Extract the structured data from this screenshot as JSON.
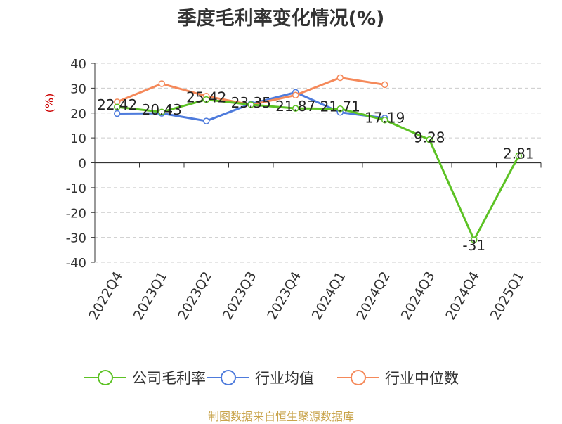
{
  "chart_data": {
    "type": "line",
    "title": "季度毛利率变化情况(%)",
    "ylabel": "(%)",
    "categories": [
      "2022Q4",
      "2023Q1",
      "2023Q2",
      "2023Q3",
      "2023Q4",
      "2024Q1",
      "2024Q2",
      "2024Q3",
      "2024Q4",
      "2025Q1"
    ],
    "ylim": [
      -40,
      40
    ],
    "yticks": [
      40,
      30,
      20,
      10,
      0,
      -10,
      -20,
      -30,
      -40
    ],
    "grid": true,
    "legend_position": "bottom",
    "series": [
      {
        "name": "公司毛利率",
        "color": "#5cc224",
        "values": [
          22.42,
          20.43,
          25.42,
          23.35,
          21.87,
          21.71,
          17.19,
          9.28,
          -31,
          2.81
        ],
        "labels": [
          "22.42",
          "20.43",
          "25.42",
          "23.35",
          "21.87",
          "21.71",
          "17.19",
          "9.28",
          "-31",
          "2.81"
        ]
      },
      {
        "name": "行业均值",
        "color": "#4e7bdc",
        "values": [
          19.8,
          19.9,
          16.8,
          23.7,
          28.3,
          20.3,
          18.0,
          null,
          null,
          null
        ]
      },
      {
        "name": "行业中位数",
        "color": "#f5895a",
        "values": [
          24.5,
          31.8,
          26.8,
          23.3,
          27.2,
          34.2,
          31.4,
          null,
          null,
          null
        ]
      }
    ]
  },
  "source_note": "制图数据来自恒生聚源数据库"
}
